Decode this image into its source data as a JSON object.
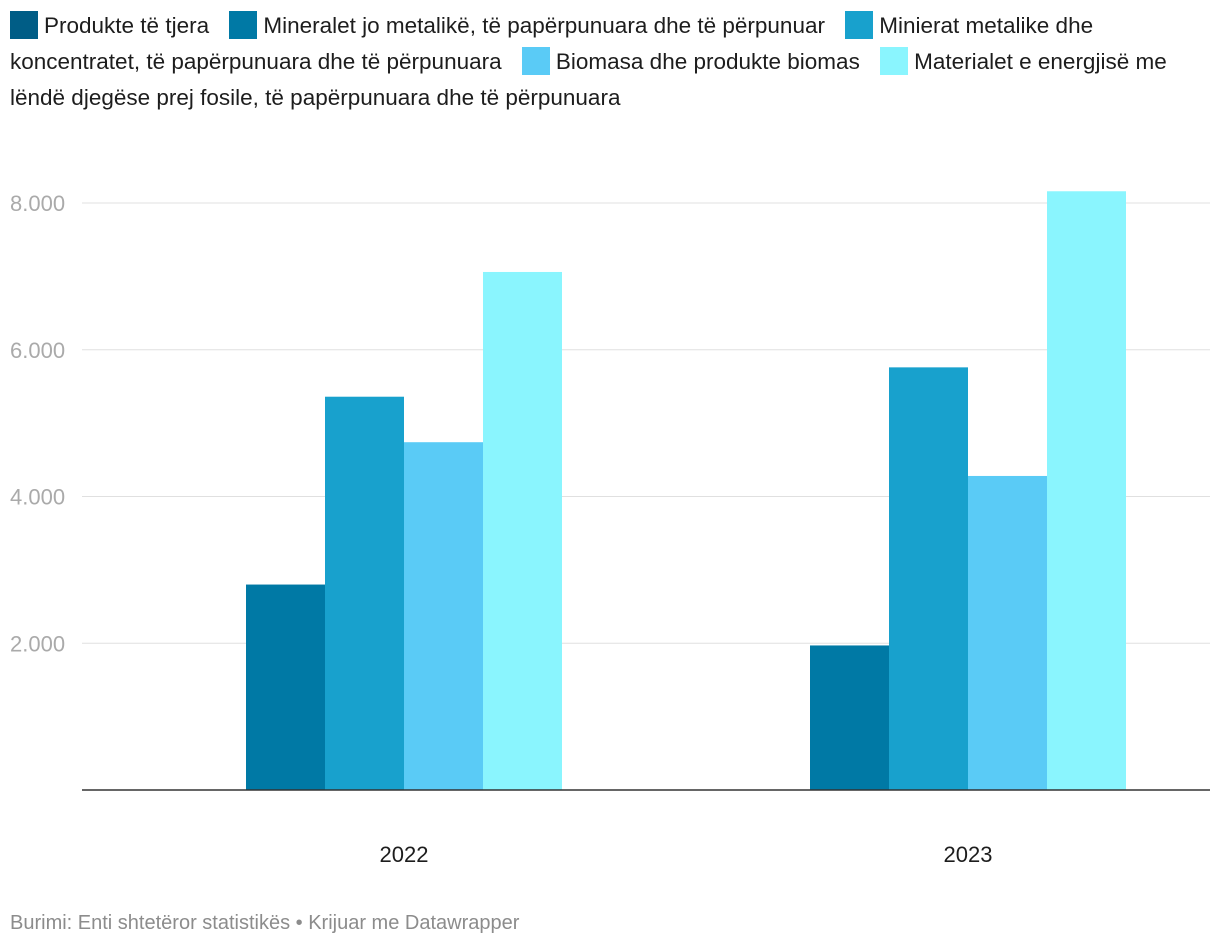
{
  "chart_data": {
    "type": "bar",
    "categories": [
      "2022",
      "2023"
    ],
    "series": [
      {
        "name": "Produkte të tjera",
        "color": "#005d86",
        "values": [
          2800,
          1970
        ]
      },
      {
        "name": "Mineralet jo metalikë, të papërpunuara dhe të përpunuar",
        "color": "#0079a5",
        "values": [
          2800,
          1970
        ]
      },
      {
        "name": "Minierat metalike dhe koncentratet, të papërpunuara dhe të përpunuara",
        "color": "#18a1cd",
        "values": [
          5360,
          5760
        ]
      },
      {
        "name": "Biomasa dhe produkte biomas",
        "color": "#5acbf6",
        "values": [
          4740,
          4280
        ]
      },
      {
        "name": "Materialet e energjisë me lëndë djegëse prej fosile, të papërpunuara dhe të përpunuara",
        "color": "#8af5fe",
        "values": [
          7060,
          8160
        ]
      }
    ],
    "bars": [
      {
        "category": "2022",
        "color": "#0079a5",
        "value": 2800
      },
      {
        "category": "2022",
        "color": "#18a1cd",
        "value": 5360
      },
      {
        "category": "2022",
        "color": "#5acbf6",
        "value": 4740
      },
      {
        "category": "2022",
        "color": "#8af5fe",
        "value": 7060
      },
      {
        "category": "2023",
        "color": "#0079a5",
        "value": 1970
      },
      {
        "category": "2023",
        "color": "#18a1cd",
        "value": 5760
      },
      {
        "category": "2023",
        "color": "#5acbf6",
        "value": 4280
      },
      {
        "category": "2023",
        "color": "#8af5fe",
        "value": 8160
      }
    ],
    "yticks": [
      {
        "value": 2000,
        "label": "2.000"
      },
      {
        "value": 4000,
        "label": "4.000"
      },
      {
        "value": 6000,
        "label": "6.000"
      },
      {
        "value": 8000,
        "label": "8.000"
      }
    ],
    "ylim": [
      0,
      8000
    ],
    "grid": true,
    "legend_position": "top"
  },
  "footer": {
    "text": "Burimi: Enti shtetëror statistikës • Krijuar me Datawrapper"
  }
}
